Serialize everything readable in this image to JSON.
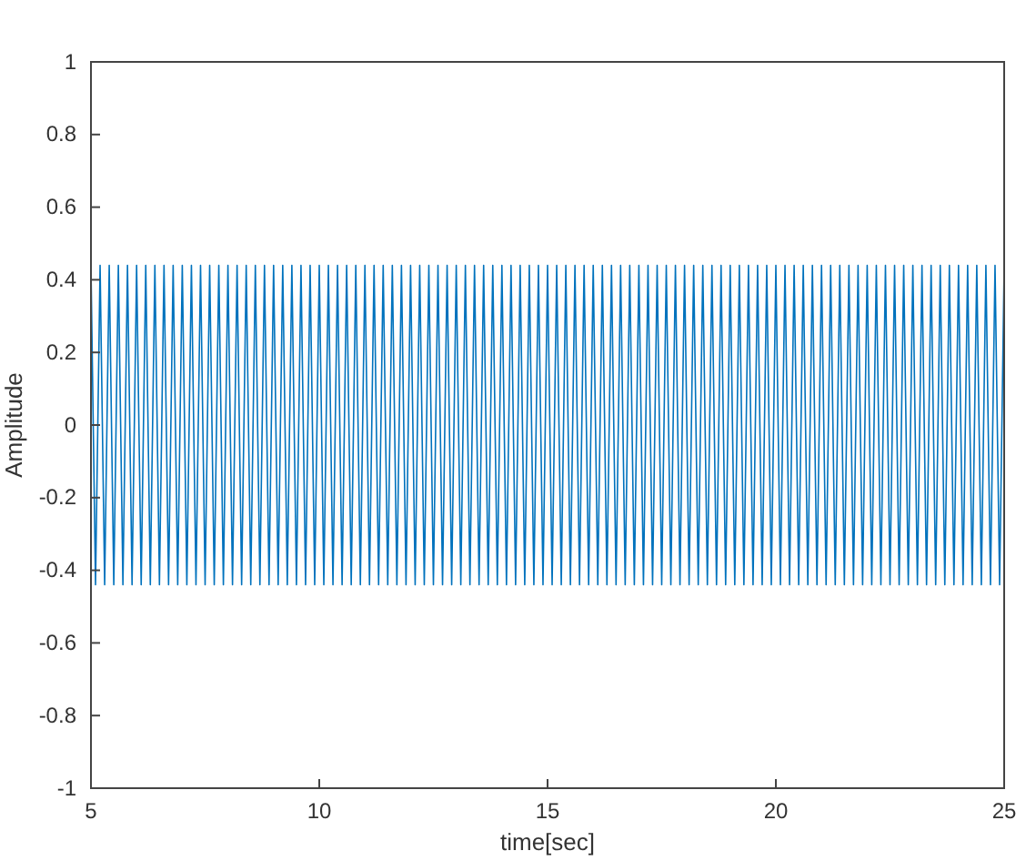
{
  "chart_data": {
    "type": "line",
    "xlabel": "time[sec]",
    "ylabel": "Amplitude",
    "xlim": [
      5,
      25
    ],
    "xticks": [
      5,
      10,
      15,
      20,
      25
    ],
    "ylim": [
      -1,
      1
    ],
    "yticks": [
      -1,
      -0.8,
      -0.6,
      -0.4,
      -0.2,
      0,
      0.2,
      0.4,
      0.6,
      0.8,
      1
    ],
    "grid": false,
    "series": [
      {
        "color": "#0072bd",
        "x": [
          5,
          5.1,
          5.2,
          5.3,
          5.4,
          5.5,
          5.6,
          5.7,
          5.8,
          5.9,
          6,
          6.1,
          6.2,
          6.3,
          6.4,
          6.5,
          6.6,
          6.7,
          6.8,
          6.9,
          7,
          7.1,
          7.2,
          7.3,
          7.4,
          7.5,
          7.6,
          7.7,
          7.8,
          7.9,
          8,
          8.1,
          8.2,
          8.3,
          8.4,
          8.5,
          8.6,
          8.7,
          8.8,
          8.9,
          9,
          9.1,
          9.2,
          9.3,
          9.4,
          9.5,
          9.6,
          9.7,
          9.8,
          9.9,
          10,
          10.1,
          10.2,
          10.3,
          10.4,
          10.5,
          10.6,
          10.7,
          10.8,
          10.9,
          11,
          11.1,
          11.2,
          11.3,
          11.4,
          11.5,
          11.6,
          11.7,
          11.8,
          11.9,
          12,
          12.1,
          12.2,
          12.3,
          12.4,
          12.5,
          12.6,
          12.7,
          12.8,
          12.9,
          13,
          13.1,
          13.2,
          13.3,
          13.4,
          13.5,
          13.6,
          13.7,
          13.8,
          13.9,
          14,
          14.1,
          14.2,
          14.3,
          14.4,
          14.5,
          14.6,
          14.7,
          14.8,
          14.9,
          15,
          15.1,
          15.2,
          15.3,
          15.4,
          15.5,
          15.6,
          15.7,
          15.8,
          15.9,
          16,
          16.1,
          16.2,
          16.3,
          16.4,
          16.5,
          16.6,
          16.7,
          16.8,
          16.9,
          17,
          17.1,
          17.2,
          17.3,
          17.4,
          17.5,
          17.6,
          17.7,
          17.8,
          17.9,
          18,
          18.1,
          18.2,
          18.3,
          18.4,
          18.5,
          18.6,
          18.7,
          18.8,
          18.9,
          19,
          19.1,
          19.2,
          19.3,
          19.4,
          19.5,
          19.6,
          19.7,
          19.8,
          19.9,
          20,
          20.1,
          20.2,
          20.3,
          20.4,
          20.5,
          20.6,
          20.7,
          20.8,
          20.9,
          21,
          21.1,
          21.2,
          21.3,
          21.4,
          21.5,
          21.6,
          21.7,
          21.8,
          21.9,
          22,
          22.1,
          22.2,
          22.3,
          22.4,
          22.5,
          22.6,
          22.7,
          22.8,
          22.9,
          23,
          23.1,
          23.2,
          23.3,
          23.4,
          23.5,
          23.6,
          23.7,
          23.8,
          23.9,
          24,
          24.1,
          24.2,
          24.3,
          24.4,
          24.5,
          24.6,
          24.7,
          24.8,
          24.9,
          25
        ],
        "values": [
          0.44,
          -0.44,
          0.44,
          -0.44,
          0.44,
          -0.44,
          0.44,
          -0.44,
          0.44,
          -0.44,
          0.44,
          -0.44,
          0.44,
          -0.44,
          0.44,
          -0.44,
          0.44,
          -0.44,
          0.44,
          -0.44,
          0.44,
          -0.44,
          0.44,
          -0.44,
          0.44,
          -0.44,
          0.44,
          -0.44,
          0.44,
          -0.44,
          0.44,
          -0.44,
          0.44,
          -0.44,
          0.44,
          -0.44,
          0.44,
          -0.44,
          0.44,
          -0.44,
          0.44,
          -0.44,
          0.44,
          -0.44,
          0.44,
          -0.44,
          0.44,
          -0.44,
          0.44,
          -0.44,
          0.44,
          -0.44,
          0.44,
          -0.44,
          0.44,
          -0.44,
          0.44,
          -0.44,
          0.44,
          -0.44,
          0.44,
          -0.44,
          0.44,
          -0.44,
          0.44,
          -0.44,
          0.44,
          -0.44,
          0.44,
          -0.44,
          0.44,
          -0.44,
          0.44,
          -0.44,
          0.44,
          -0.44,
          0.44,
          -0.44,
          0.44,
          -0.44,
          0.44,
          -0.44,
          0.44,
          -0.44,
          0.44,
          -0.44,
          0.44,
          -0.44,
          0.44,
          -0.44,
          0.44,
          -0.44,
          0.44,
          -0.44,
          0.44,
          -0.44,
          0.44,
          -0.44,
          0.44,
          -0.44,
          0.44,
          -0.44,
          0.44,
          -0.44,
          0.44,
          -0.44,
          0.44,
          -0.44,
          0.44,
          -0.44,
          0.44,
          -0.44,
          0.44,
          -0.44,
          0.44,
          -0.44,
          0.44,
          -0.44,
          0.44,
          -0.44,
          0.44,
          -0.44,
          0.44,
          -0.44,
          0.44,
          -0.44,
          0.44,
          -0.44,
          0.44,
          -0.44,
          0.44,
          -0.44,
          0.44,
          -0.44,
          0.44,
          -0.44,
          0.44,
          -0.44,
          0.44,
          -0.44,
          0.44,
          -0.44,
          0.44,
          -0.44,
          0.44,
          -0.44,
          0.44,
          -0.44,
          0.44,
          -0.44,
          0.44,
          -0.44,
          0.44,
          -0.44,
          0.44,
          -0.44,
          0.44,
          -0.44,
          0.44,
          -0.44,
          0.44,
          -0.44,
          0.44,
          -0.44,
          0.44,
          -0.44,
          0.44,
          -0.44,
          0.44,
          -0.44,
          0.44,
          -0.44,
          0.44,
          -0.44,
          0.44,
          -0.44,
          0.44,
          -0.44,
          0.44,
          -0.44,
          0.44,
          -0.44,
          0.44,
          -0.44,
          0.44,
          -0.44,
          0.44,
          -0.44,
          0.44,
          -0.44,
          0.44,
          -0.44,
          0.44,
          -0.44,
          0.44,
          -0.44,
          0.44,
          -0.44,
          0.44,
          -0.44,
          0.44
        ]
      }
    ]
  }
}
